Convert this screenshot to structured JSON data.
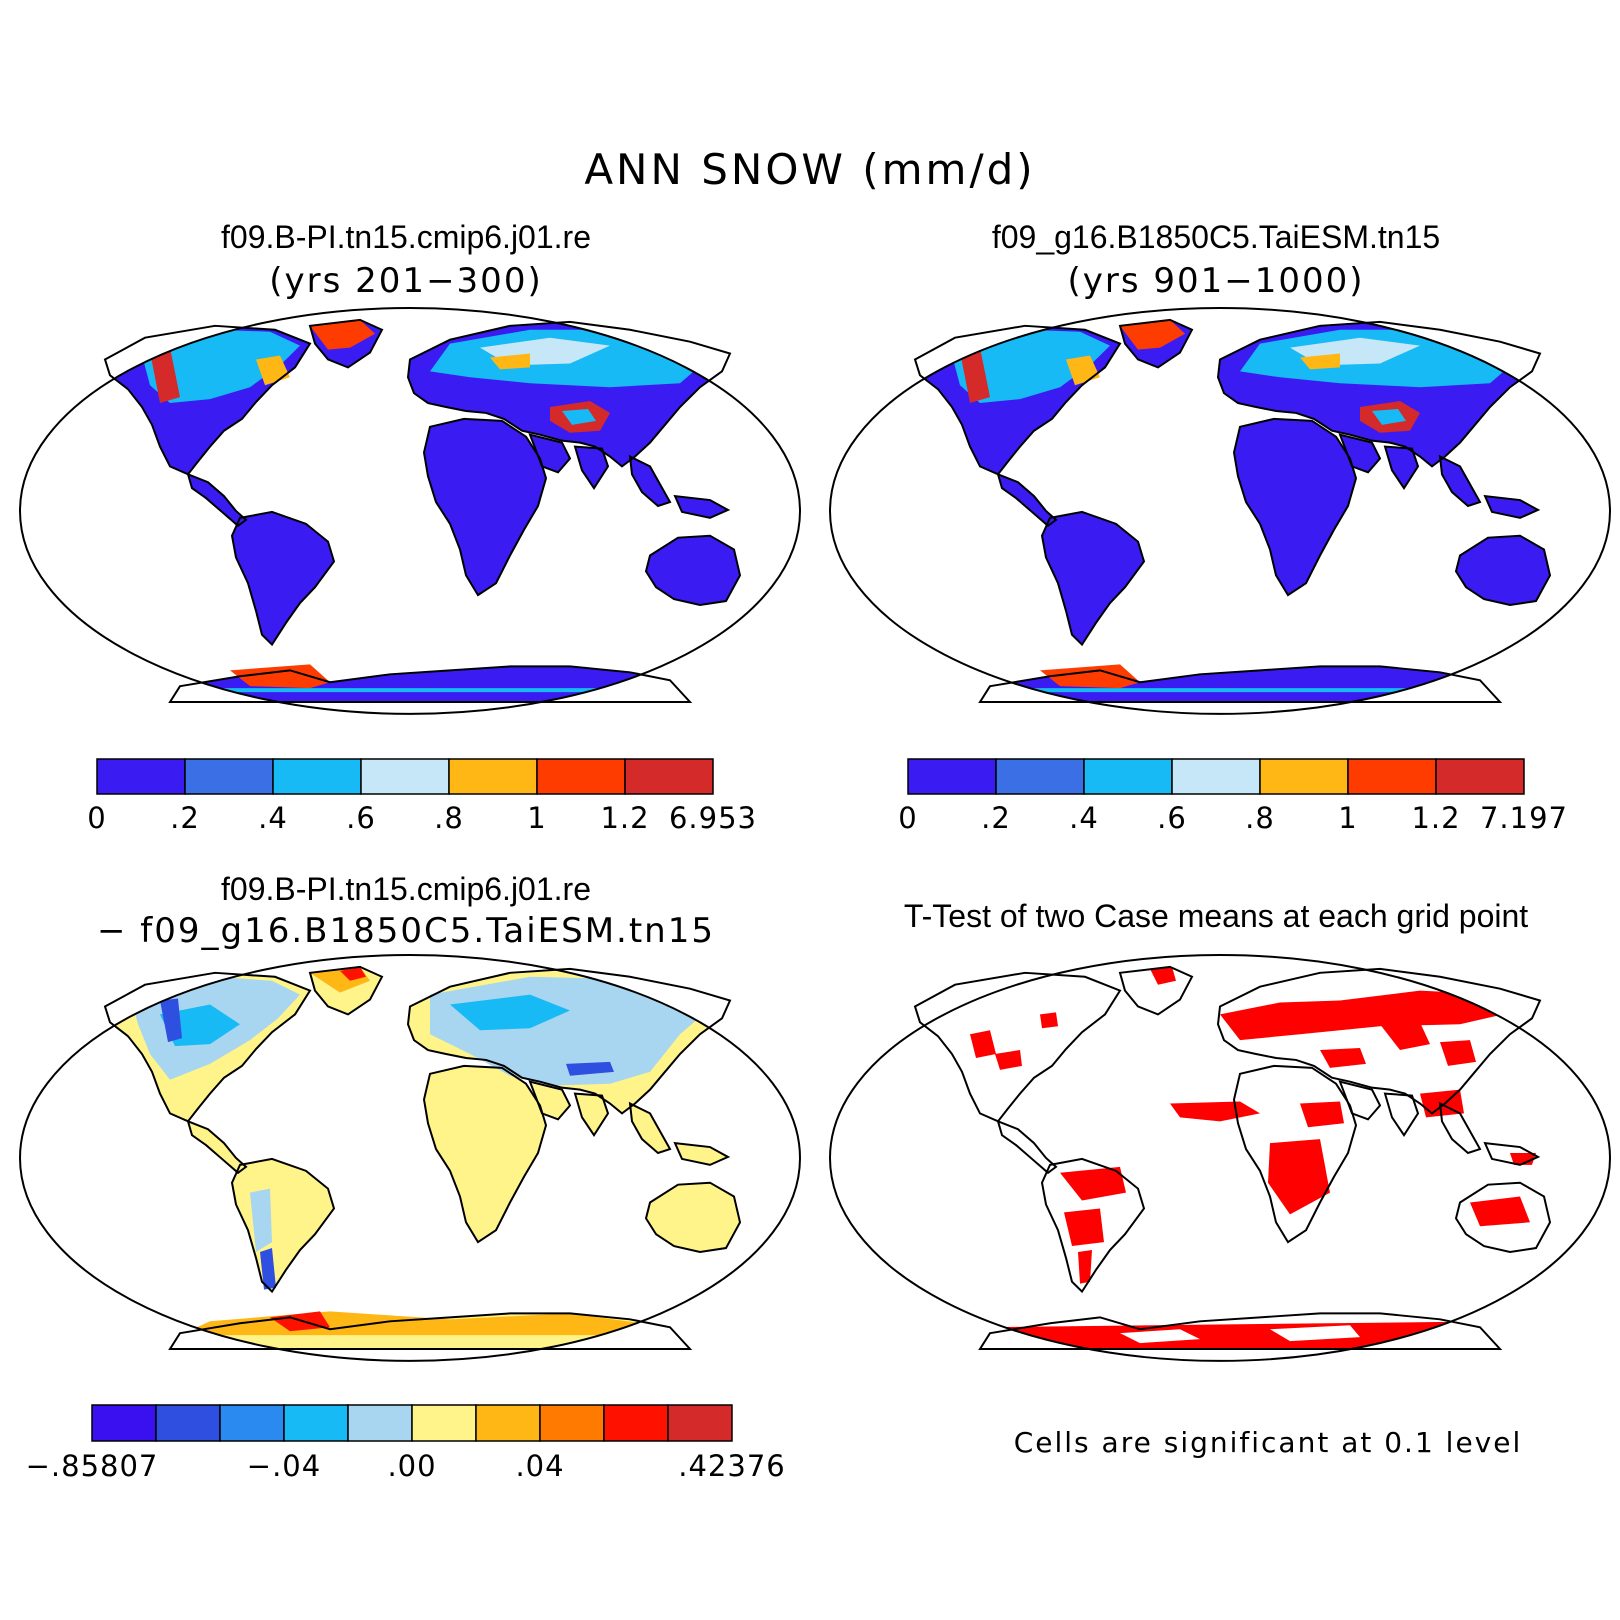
{
  "title": "ANN SNOW (mm/d)",
  "panels": [
    {
      "id": "case1",
      "title_line1": "f09.B-PI.tn15.cmip6.j01.re",
      "title_line2": "(yrs 201−300)",
      "colorbar": {
        "colors": [
          "#3a1cf2",
          "#3a6fe6",
          "#17baf5",
          "#c6e7f7",
          "#ffb715",
          "#ff3c00",
          "#d52a2a"
        ],
        "ticks": [
          "0",
          ".2",
          ".4",
          ".6",
          ".8",
          "1",
          "1.2",
          "6.953"
        ]
      }
    },
    {
      "id": "case2",
      "title_line1": "f09_g16.B1850C5.TaiESM.tn15",
      "title_line2": "(yrs 901−1000)",
      "colorbar": {
        "colors": [
          "#3a1cf2",
          "#3a6fe6",
          "#17baf5",
          "#c6e7f7",
          "#ffb715",
          "#ff3c00",
          "#d52a2a"
        ],
        "ticks": [
          "0",
          ".2",
          ".4",
          ".6",
          ".8",
          "1",
          "1.2",
          "7.197"
        ]
      }
    },
    {
      "id": "diff",
      "title_line1": "f09.B-PI.tn15.cmip6.j01.re",
      "title_line2": "− f09_g16.B1850C5.TaiESM.tn15",
      "colorbar": {
        "colors": [
          "#3a10f0",
          "#2f4fe0",
          "#2a8af0",
          "#17baf5",
          "#a8d6f0",
          "#fff48a",
          "#ffb715",
          "#ff7a00",
          "#ff1100",
          "#d52a2a"
        ],
        "ticks": [
          {
            "label": "−.85807",
            "index": 0
          },
          {
            "label": "−.04",
            "index": 3
          },
          {
            "label": ".00",
            "index": 5
          },
          {
            "label": ".04",
            "index": 7
          },
          {
            "label": ".42376",
            "index": 10
          }
        ]
      }
    },
    {
      "id": "ttest",
      "title_line1": "T-Test of two Case means at each grid point",
      "note": "Cells are significant at 0.1 level",
      "color": "#ff0000"
    }
  ]
}
